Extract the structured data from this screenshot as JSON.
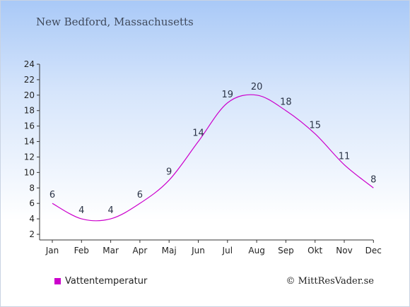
{
  "chart_data": {
    "type": "line",
    "title": "New Bedford, Massachusetts",
    "categories": [
      "Jan",
      "Feb",
      "Mar",
      "Apr",
      "Maj",
      "Jun",
      "Jul",
      "Aug",
      "Sep",
      "Okt",
      "Nov",
      "Dec"
    ],
    "series": [
      {
        "name": "Vattentemperatur",
        "color": "#cc00cc",
        "values": [
          6,
          4,
          4,
          6,
          9,
          14,
          19,
          20,
          18,
          15,
          11,
          8
        ],
        "labels": [
          "6",
          "4",
          "4",
          "6",
          "9",
          "14",
          "19",
          "20",
          "18",
          "15",
          "11",
          "8"
        ]
      }
    ],
    "ylim": [
      2,
      24
    ],
    "yticks": [
      "2",
      "4",
      "6",
      "8",
      "10",
      "12",
      "14",
      "16",
      "18",
      "20",
      "22",
      "24"
    ],
    "grid": false,
    "legend": "bottom-left"
  },
  "credit": "© MittResVader.se"
}
